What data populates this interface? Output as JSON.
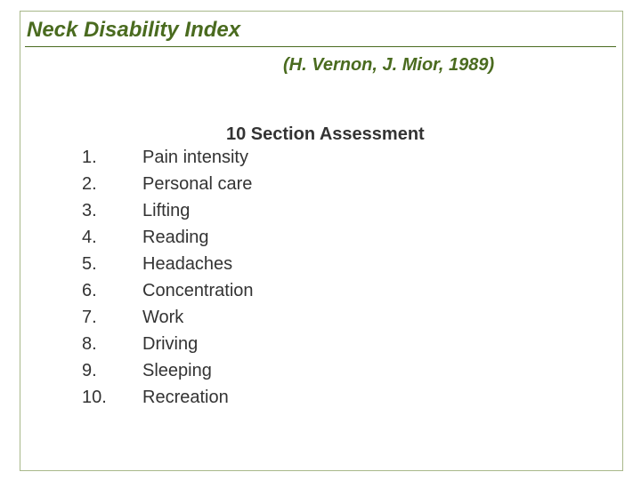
{
  "title": "Neck Disability Index",
  "citation": "(H. Vernon, J. Mior,  1989)",
  "section_heading": "10 Section Assessment",
  "colors": {
    "accent": "#4a6b1f",
    "border": "#a8b88a",
    "text": "#333333",
    "background": "#ffffff"
  },
  "typography": {
    "title_fontsize": 24,
    "citation_fontsize": 20,
    "heading_fontsize": 20,
    "list_fontsize": 20,
    "font_family": "Arial"
  },
  "list": {
    "items": [
      {
        "num": "1.",
        "text": "Pain intensity"
      },
      {
        "num": "2.",
        "text": "Personal care"
      },
      {
        "num": "3.",
        "text": "Lifting"
      },
      {
        "num": "4.",
        "text": "Reading"
      },
      {
        "num": "5.",
        "text": "Headaches"
      },
      {
        "num": "6.",
        "text": "Concentration"
      },
      {
        "num": "7.",
        "text": "Work"
      },
      {
        "num": "8.",
        "text": "Driving"
      },
      {
        "num": "9.",
        "text": "Sleeping"
      },
      {
        "num": "10.",
        "text": "Recreation"
      }
    ]
  }
}
